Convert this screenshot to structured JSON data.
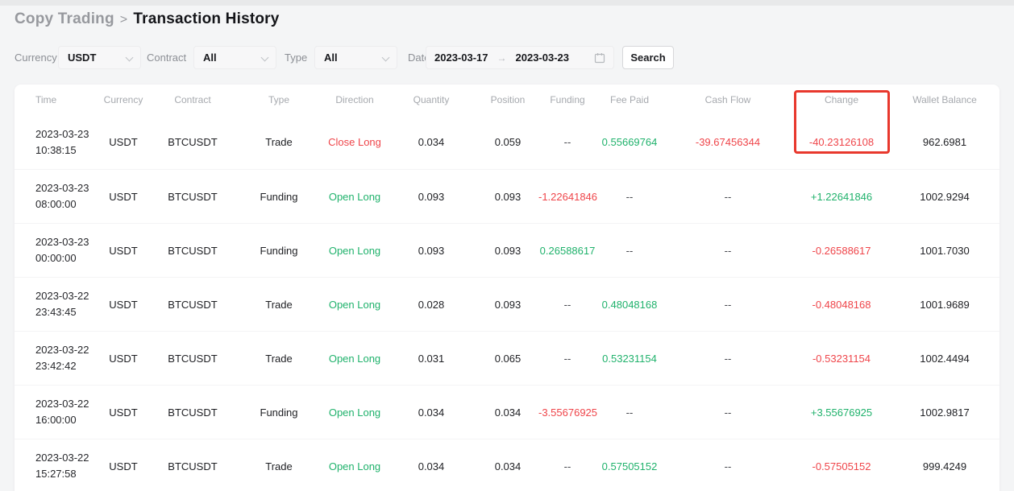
{
  "breadcrumb": {
    "parent": "Copy Trading",
    "separator": ">",
    "current": "Transaction History"
  },
  "filters": {
    "currency": {
      "label": "Currency",
      "value": "USDT"
    },
    "contract": {
      "label": "Contract",
      "value": "All"
    },
    "type": {
      "label": "Type",
      "value": "All"
    },
    "date": {
      "label": "Date",
      "start": "2023-03-17",
      "arrow": "→",
      "end": "2023-03-23"
    },
    "search_label": "Search"
  },
  "table": {
    "columns": [
      "Time",
      "Currency",
      "Contract",
      "Type",
      "Direction",
      "Quantity",
      "Position",
      "Funding",
      "Fee Paid",
      "Cash Flow",
      "Change",
      "Wallet Balance"
    ],
    "highlighted_column": "Change",
    "rows": [
      [
        {
          "value": "2023-03-23\n10:38:15"
        },
        {
          "value": "USDT"
        },
        {
          "value": "BTCUSDT"
        },
        {
          "value": "Trade"
        },
        {
          "value": "Close Long",
          "color": "red"
        },
        {
          "value": "0.034"
        },
        {
          "value": "0.059"
        },
        {
          "value": "--",
          "color": "dash"
        },
        {
          "value": "0.55669764",
          "color": "green"
        },
        {
          "value": "-39.67456344",
          "color": "red"
        },
        {
          "value": "-40.23126108",
          "color": "red"
        },
        {
          "value": "962.6981"
        }
      ],
      [
        {
          "value": "2023-03-23\n08:00:00"
        },
        {
          "value": "USDT"
        },
        {
          "value": "BTCUSDT"
        },
        {
          "value": "Funding"
        },
        {
          "value": "Open Long",
          "color": "green"
        },
        {
          "value": "0.093"
        },
        {
          "value": "0.093"
        },
        {
          "value": "-1.22641846",
          "color": "red"
        },
        {
          "value": "--",
          "color": "dash"
        },
        {
          "value": "--",
          "color": "dash"
        },
        {
          "value": "+1.22641846",
          "color": "green"
        },
        {
          "value": "1002.9294"
        }
      ],
      [
        {
          "value": "2023-03-23\n00:00:00"
        },
        {
          "value": "USDT"
        },
        {
          "value": "BTCUSDT"
        },
        {
          "value": "Funding"
        },
        {
          "value": "Open Long",
          "color": "green"
        },
        {
          "value": "0.093"
        },
        {
          "value": "0.093"
        },
        {
          "value": "0.26588617",
          "color": "green"
        },
        {
          "value": "--",
          "color": "dash"
        },
        {
          "value": "--",
          "color": "dash"
        },
        {
          "value": "-0.26588617",
          "color": "red"
        },
        {
          "value": "1001.7030"
        }
      ],
      [
        {
          "value": "2023-03-22\n23:43:45"
        },
        {
          "value": "USDT"
        },
        {
          "value": "BTCUSDT"
        },
        {
          "value": "Trade"
        },
        {
          "value": "Open Long",
          "color": "green"
        },
        {
          "value": "0.028"
        },
        {
          "value": "0.093"
        },
        {
          "value": "--",
          "color": "dash"
        },
        {
          "value": "0.48048168",
          "color": "green"
        },
        {
          "value": "--",
          "color": "dash"
        },
        {
          "value": "-0.48048168",
          "color": "red"
        },
        {
          "value": "1001.9689"
        }
      ],
      [
        {
          "value": "2023-03-22\n23:42:42"
        },
        {
          "value": "USDT"
        },
        {
          "value": "BTCUSDT"
        },
        {
          "value": "Trade"
        },
        {
          "value": "Open Long",
          "color": "green"
        },
        {
          "value": "0.031"
        },
        {
          "value": "0.065"
        },
        {
          "value": "--",
          "color": "dash"
        },
        {
          "value": "0.53231154",
          "color": "green"
        },
        {
          "value": "--",
          "color": "dash"
        },
        {
          "value": "-0.53231154",
          "color": "red"
        },
        {
          "value": "1002.4494"
        }
      ],
      [
        {
          "value": "2023-03-22\n16:00:00"
        },
        {
          "value": "USDT"
        },
        {
          "value": "BTCUSDT"
        },
        {
          "value": "Funding"
        },
        {
          "value": "Open Long",
          "color": "green"
        },
        {
          "value": "0.034"
        },
        {
          "value": "0.034"
        },
        {
          "value": "-3.55676925",
          "color": "red"
        },
        {
          "value": "--",
          "color": "dash"
        },
        {
          "value": "--",
          "color": "dash"
        },
        {
          "value": "+3.55676925",
          "color": "green"
        },
        {
          "value": "1002.9817"
        }
      ],
      [
        {
          "value": "2023-03-22\n15:27:58"
        },
        {
          "value": "USDT"
        },
        {
          "value": "BTCUSDT"
        },
        {
          "value": "Trade"
        },
        {
          "value": "Open Long",
          "color": "green"
        },
        {
          "value": "0.034"
        },
        {
          "value": "0.034"
        },
        {
          "value": "--",
          "color": "dash"
        },
        {
          "value": "0.57505152",
          "color": "green"
        },
        {
          "value": "--",
          "color": "dash"
        },
        {
          "value": "-0.57505152",
          "color": "red"
        },
        {
          "value": "999.4249"
        }
      ]
    ]
  },
  "colors": {
    "green": "#20b26c",
    "red": "#ef454a",
    "dash": "#45474d",
    "highlight_box": "#e8382d"
  }
}
